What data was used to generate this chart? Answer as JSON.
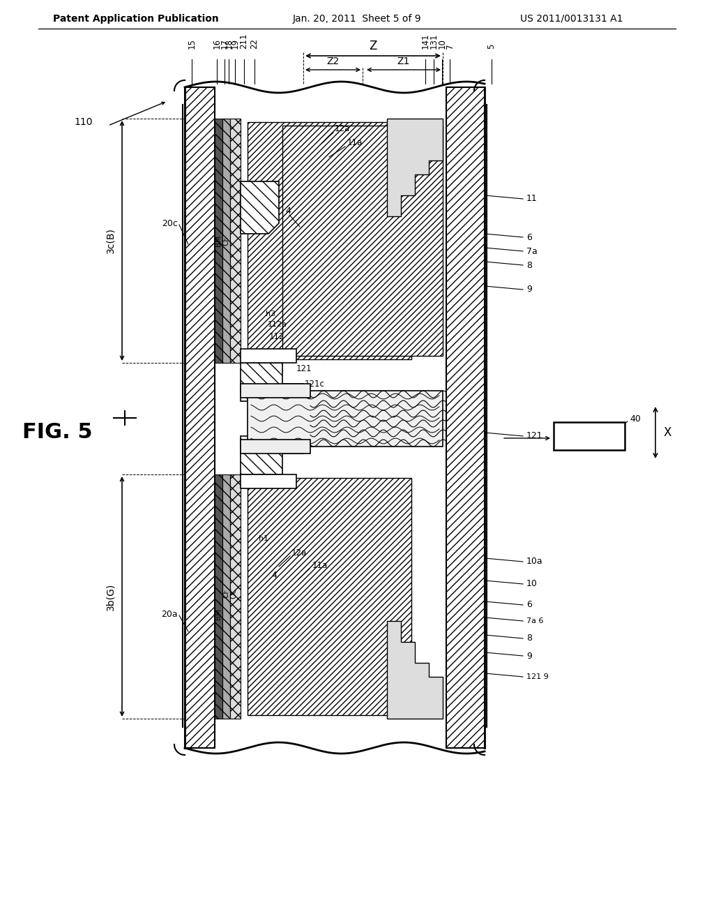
{
  "header_left": "Patent Application Publication",
  "header_mid": "Jan. 20, 2011  Sheet 5 of 9",
  "header_right": "US 2011/0013131 A1",
  "bg": "#ffffff"
}
